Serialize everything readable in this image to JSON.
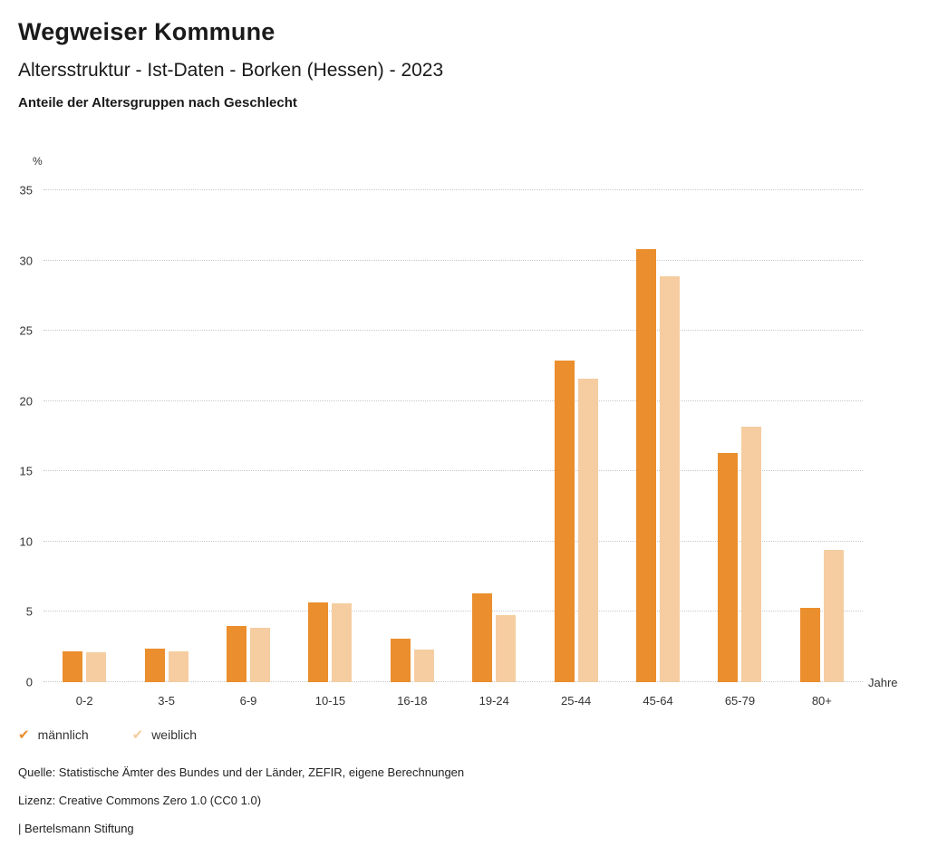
{
  "header": {
    "title": "Wegweiser Kommune",
    "subtitle": "Altersstruktur - Ist-Daten - Borken (Hessen) - 2023"
  },
  "chart_data": {
    "type": "bar",
    "title": "Anteile der Altersgruppen nach Geschlecht",
    "unit_label": "%",
    "xlabel": "Jahre",
    "ylim": [
      0,
      35
    ],
    "ytick_step": 5,
    "grid": true,
    "grid_style": "dotted",
    "legend_position": "bottom",
    "categories": [
      "0-2",
      "3-5",
      "6-9",
      "10-15",
      "16-18",
      "19-24",
      "25-44",
      "45-64",
      "65-79",
      "80+"
    ],
    "series": [
      {
        "name": "männlich",
        "color": "#EB8E2D",
        "values": [
          2.2,
          2.4,
          4.0,
          5.7,
          3.1,
          6.3,
          22.9,
          30.8,
          16.3,
          5.3
        ]
      },
      {
        "name": "weiblich",
        "color": "#F6CDA0",
        "values": [
          2.1,
          2.2,
          3.9,
          5.6,
          2.3,
          4.8,
          21.6,
          28.9,
          18.2,
          9.4
        ]
      }
    ]
  },
  "footer": {
    "source": "Quelle: Statistische Ämter des Bundes und der Länder, ZEFIR, eigene Berechnungen",
    "license": "Lizenz: Creative Commons Zero 1.0 (CC0 1.0)",
    "attribution": "| Bertelsmann Stiftung"
  }
}
